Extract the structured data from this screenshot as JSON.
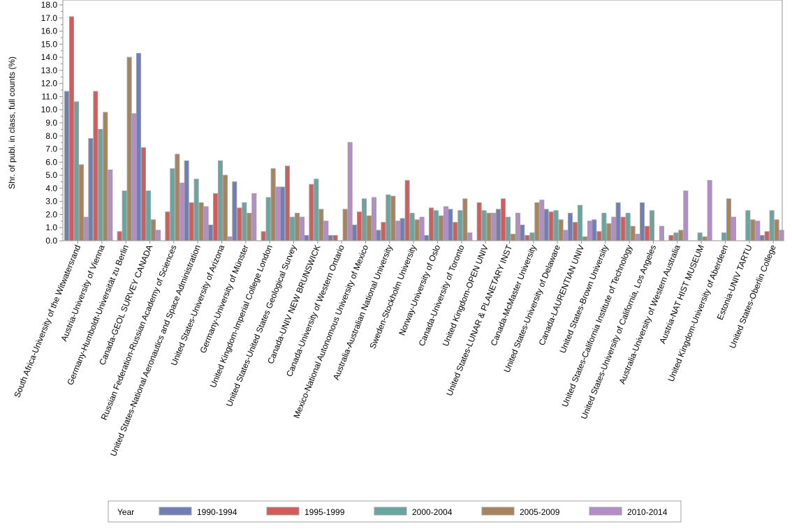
{
  "chart_data": {
    "type": "bar",
    "title": "",
    "xlabel": "",
    "ylabel": "Shr. of publ. in class, full counts (%)",
    "ylim": [
      0,
      18
    ],
    "yticks": [
      "0.0",
      "1.0",
      "2.0",
      "3.0",
      "4.0",
      "5.0",
      "6.0",
      "7.0",
      "8.0",
      "9.0",
      "10.0",
      "11.0",
      "12.0",
      "13.0",
      "14.0",
      "15.0",
      "16.0",
      "17.0",
      "18.0"
    ],
    "grid": false,
    "legend": {
      "title": "Year",
      "placement": "bottom"
    },
    "categories": [
      "South Africa-University of the Witwatersrand",
      "Austria-University of Vienna",
      "Germany-Humboldt-Universität zu Berlin",
      "Canada-GEOL SURVEY CANADA",
      "Russian Federation-Russian Academy of Sciences",
      "United States-National Aeronautics and Space Administration",
      "United States-University of Arizona",
      "Germany-University of Münster",
      "United Kingdom-Imperial College London",
      "United States-United States Geological Survey",
      "Canada-UNIV NEW BRUNSWICK",
      "Canada-University of Western Ontario",
      "Mexico-National Autonomous University of Mexico",
      "Australia-Australian National University",
      "Sweden-Stockholm University",
      "Norway-University of Oslo",
      "Canada-University of Toronto",
      "United Kingdom-OPEN UNIV",
      "United States-LUNAR & PLANETARY INST",
      "Canada-McMaster University",
      "United States-University of Delaware",
      "Canada-LAURENTIAN UNIV",
      "United States-Brown University",
      "United States-California Institute of Technology",
      "United States-University of California, Los Angeles",
      "Australia-University of Western Australia",
      "Austria-NAT HIST MUSEUM",
      "United Kingdom-University of Aberdeen",
      "Estonia-UNIV TARTU",
      "United States-Oberlin College"
    ],
    "series": [
      {
        "name": "1990-1994",
        "color": "#6f7fb5",
        "values": [
          11.4,
          7.8,
          0,
          14.3,
          0,
          6.1,
          1.2,
          4.5,
          0,
          4.1,
          0.4,
          0.4,
          1.2,
          0.8,
          1.7,
          0.4,
          2.4,
          0,
          2.4,
          1.2,
          2.4,
          2.1,
          1.6,
          2.9,
          2.9,
          0,
          0,
          0,
          0,
          0.4
        ]
      },
      {
        "name": "1995-1999",
        "color": "#d25b5b",
        "values": [
          17.1,
          11.4,
          0.7,
          7.1,
          2.2,
          2.9,
          3.6,
          2.5,
          0.7,
          5.7,
          4.3,
          0.4,
          2.2,
          1.4,
          4.6,
          2.5,
          1.4,
          2.9,
          3.2,
          0.4,
          2.2,
          1.4,
          0.7,
          1.8,
          1.1,
          0.4,
          0,
          0,
          0,
          0.7
        ]
      },
      {
        "name": "2000-2004",
        "color": "#67a59e",
        "values": [
          10.6,
          8.5,
          3.8,
          3.8,
          5.5,
          4.7,
          6.1,
          2.9,
          3.3,
          1.8,
          4.7,
          0,
          3.2,
          3.5,
          2.1,
          2.3,
          2.3,
          2.3,
          1.8,
          0.6,
          2.3,
          2.7,
          2.1,
          2.1,
          2.3,
          0.6,
          0.6,
          0.6,
          2.3,
          2.3
        ]
      },
      {
        "name": "2005-2009",
        "color": "#a8845c",
        "values": [
          5.8,
          9.8,
          14.0,
          1.6,
          6.6,
          2.9,
          5.0,
          2.1,
          5.5,
          2.1,
          2.4,
          2.4,
          1.9,
          3.4,
          1.6,
          1.9,
          3.2,
          2.1,
          0.5,
          2.9,
          1.6,
          0.3,
          1.3,
          1.1,
          0,
          0.8,
          0.3,
          3.2,
          1.6,
          1.6
        ]
      },
      {
        "name": "2010-2014",
        "color": "#b48ccb",
        "values": [
          1.8,
          5.4,
          9.7,
          0.8,
          4.4,
          2.6,
          0.3,
          3.6,
          4.1,
          1.8,
          1.5,
          7.5,
          3.3,
          1.5,
          1.8,
          2.6,
          0.6,
          2.1,
          2.1,
          3.1,
          0.8,
          1.5,
          1.8,
          0.5,
          1.1,
          3.8,
          4.6,
          1.8,
          1.5,
          0.8
        ]
      }
    ]
  }
}
